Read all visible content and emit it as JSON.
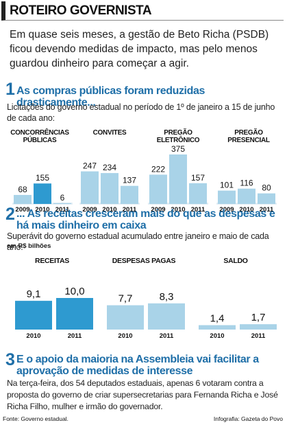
{
  "header": {
    "title": "ROTEIRO GOVERNISTA"
  },
  "intro": "Em quase seis meses, a gestão de Beto Richa (PSDB) ficou devendo medidas de impacto, mas pelo menos guardou dinheiro para começar a agir.",
  "section1": {
    "number": "1",
    "title": "As compras públicas foram reduzidas drasticamente...",
    "subtitle": "Licitações do governo estadual no período de 1º de janeiro a 15 de junho de cada ano:"
  },
  "section2": {
    "number": "2",
    "title": "... As receitas cresceram mais do que as despesas e há mais dinheiro em caixa",
    "subtitle": "Superávit do governo estadual acumulado entre janeiro e maio de cada ano:",
    "unit": "em R$ bilhões"
  },
  "section3": {
    "number": "3",
    "title": "E o apoio da maioria na Assembleia vai facilitar a aprovação de medidas de interesse",
    "text": "Na terça-feira, dos 54 deputados estaduais, apenas 6 votaram contra a proposta do governo de criar supersecretarias para Fernanda Richa e José Richa Filho, mulher e irmão do governador."
  },
  "footer": {
    "source": "Fonte: Governo estadual.",
    "credit": "Infografia: Gazeta do Povo"
  },
  "colors": {
    "accent": "#1f6fa8",
    "bar": "#a9d3e8",
    "bar_highlight": "#2e9ad0",
    "bar_dark": "#1f8fcf"
  },
  "chart_data": [
    {
      "type": "bar",
      "title": "Licitações",
      "groups": [
        {
          "label": "CONCORRÊNCIAS PÚBLICAS",
          "categories": [
            "2009",
            "2010",
            "2011"
          ],
          "values": [
            68,
            155,
            6
          ],
          "labels": [
            "68",
            "155",
            "6"
          ],
          "highlight": 1
        },
        {
          "label": "CONVITES",
          "categories": [
            "2009",
            "2010",
            "2011"
          ],
          "values": [
            247,
            234,
            137
          ],
          "labels": [
            "247",
            "234",
            "137"
          ],
          "highlight": -1
        },
        {
          "label": "PREGÃO ELETRÔNICO",
          "categories": [
            "2009",
            "2010",
            "2011"
          ],
          "values": [
            222,
            375,
            157
          ],
          "labels": [
            "222",
            "375",
            "157"
          ],
          "highlight": -1
        },
        {
          "label": "PREGÃO PRESENCIAL",
          "categories": [
            "2009",
            "2010",
            "2011"
          ],
          "values": [
            101,
            116,
            80
          ],
          "labels": [
            "101",
            "116",
            "80"
          ],
          "highlight": -1
        }
      ]
    },
    {
      "type": "bar",
      "title": "Superávit",
      "unit": "em R$ bilhões",
      "groups": [
        {
          "label": "RECEITAS",
          "categories": [
            "2010",
            "2011"
          ],
          "values": [
            9.1,
            10.0
          ],
          "labels": [
            "9,1",
            "10,0"
          ],
          "highlight": -1
        },
        {
          "label": "DESPESAS PAGAS",
          "categories": [
            "2010",
            "2011"
          ],
          "values": [
            7.7,
            8.3
          ],
          "labels": [
            "7,7",
            "8,3"
          ],
          "highlight": -1
        },
        {
          "label": "SALDO",
          "categories": [
            "2010",
            "2011"
          ],
          "values": [
            1.4,
            1.7
          ],
          "labels": [
            "1,4",
            "1,7"
          ],
          "highlight": -1
        }
      ]
    }
  ]
}
